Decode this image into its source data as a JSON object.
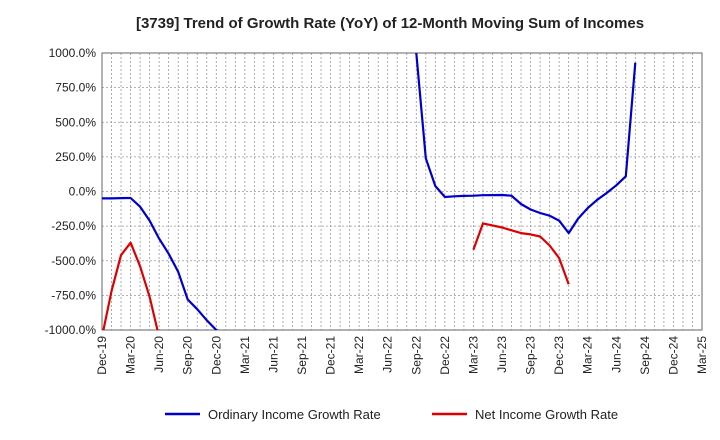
{
  "chart_data": {
    "type": "line",
    "title": "[3739]  Trend of Growth Rate (YoY) of 12-Month Moving Sum of Incomes",
    "xlabel": "",
    "ylabel": "",
    "ylim": [
      -1000,
      1000
    ],
    "y_ticks": [
      1000,
      750,
      500,
      250,
      0,
      -250,
      -500,
      -750,
      -1000
    ],
    "y_tick_labels": [
      "1000.0%",
      "750.0%",
      "500.0%",
      "250.0%",
      "0.0%",
      "-250.0%",
      "-500.0%",
      "-750.0%",
      "-1000.0%"
    ],
    "x_range": [
      "2019-12",
      "2025-03"
    ],
    "x_tick_labels": [
      "Dec-19",
      "Mar-20",
      "Jun-20",
      "Sep-20",
      "Dec-20",
      "Mar-21",
      "Jun-21",
      "Sep-21",
      "Dec-21",
      "Mar-22",
      "Jun-22",
      "Sep-22",
      "Dec-22",
      "Mar-23",
      "Jun-23",
      "Sep-23",
      "Dec-23",
      "Mar-24",
      "Jun-24",
      "Sep-24",
      "Dec-24",
      "Mar-25"
    ],
    "grid": true,
    "legend_position": "bottom",
    "series": [
      {
        "name": "Ordinary Income Growth Rate",
        "color": "#0000cc",
        "points": [
          [
            "2019-12",
            -50
          ],
          [
            "2020-01",
            -50
          ],
          [
            "2020-02",
            -48
          ],
          [
            "2020-03",
            -47
          ],
          [
            "2020-04",
            -110
          ],
          [
            "2020-05",
            -210
          ],
          [
            "2020-06",
            -340
          ],
          [
            "2020-07",
            -450
          ],
          [
            "2020-08",
            -580
          ],
          [
            "2020-09",
            -780
          ],
          [
            "2020-10",
            -850
          ],
          [
            "2020-11",
            -930
          ],
          [
            "2020-12",
            -1000
          ],
          [
            "2021-01",
            -1030
          ],
          [
            "2022-08",
            1050
          ],
          [
            "2022-09",
            1000
          ],
          [
            "2022-10",
            240
          ],
          [
            "2022-11",
            40
          ],
          [
            "2022-12",
            -40
          ],
          [
            "2023-01",
            -35
          ],
          [
            "2023-02",
            -32
          ],
          [
            "2023-03",
            -30
          ],
          [
            "2023-04",
            -27
          ],
          [
            "2023-05",
            -26
          ],
          [
            "2023-06",
            -25
          ],
          [
            "2023-07",
            -30
          ],
          [
            "2023-08",
            -90
          ],
          [
            "2023-09",
            -130
          ],
          [
            "2023-10",
            -155
          ],
          [
            "2023-11",
            -175
          ],
          [
            "2023-12",
            -210
          ],
          [
            "2024-01",
            -300
          ],
          [
            "2024-02",
            -195
          ],
          [
            "2024-03",
            -120
          ],
          [
            "2024-04",
            -60
          ],
          [
            "2024-05",
            -10
          ],
          [
            "2024-06",
            45
          ],
          [
            "2024-07",
            110
          ],
          [
            "2024-08",
            930
          ]
        ]
      },
      {
        "name": "Net Income Growth Rate",
        "color": "#dd0000",
        "segments": [
          [
            [
              "2019-12",
              -1050
            ],
            [
              "2020-01",
              -720
            ],
            [
              "2020-02",
              -460
            ],
            [
              "2020-03",
              -370
            ],
            [
              "2020-04",
              -540
            ],
            [
              "2020-05",
              -760
            ],
            [
              "2020-06",
              -1050
            ]
          ],
          [
            [
              "2023-03",
              -420
            ],
            [
              "2023-04",
              -230
            ],
            [
              "2023-05",
              -245
            ],
            [
              "2023-06",
              -260
            ],
            [
              "2023-07",
              -280
            ],
            [
              "2023-08",
              -300
            ],
            [
              "2023-09",
              -310
            ],
            [
              "2023-10",
              -325
            ],
            [
              "2023-11",
              -390
            ],
            [
              "2023-12",
              -480
            ],
            [
              "2024-01",
              -670
            ]
          ]
        ]
      }
    ]
  }
}
